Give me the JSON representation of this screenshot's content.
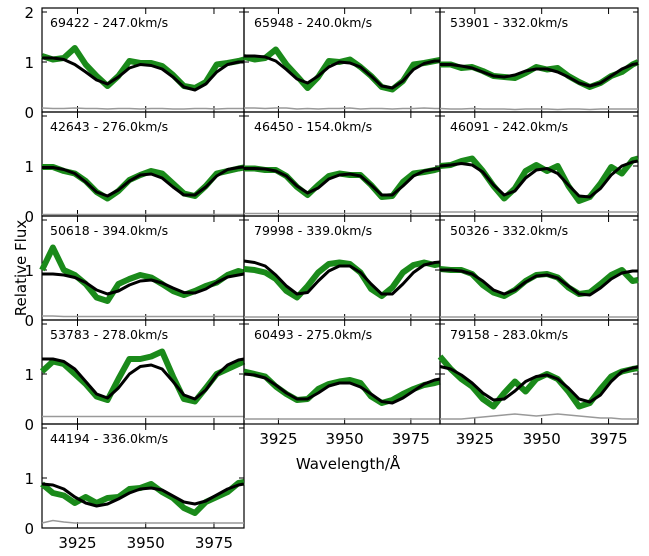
{
  "figure": {
    "ylabel": "Relative Flux",
    "xlabel": "Wavelength/Å"
  },
  "chart_data": {
    "type": "line",
    "xlabel": "Wavelength/Å",
    "ylabel": "Relative Flux",
    "xlim": [
      3912,
      3986
    ],
    "ylim": [
      0,
      2
    ],
    "x_ticks": [
      3925,
      3950,
      3975
    ],
    "y_ticks": [
      0,
      1,
      2
    ],
    "colors": {
      "observed": "#1a8a1a",
      "model": "#000000",
      "noise": "#999999"
    },
    "panels": [
      {
        "title": "69422 - 247.0km/s",
        "x": [
          3912,
          3916,
          3920,
          3924,
          3928,
          3932,
          3936,
          3940,
          3944,
          3948,
          3952,
          3956,
          3960,
          3964,
          3968,
          3972,
          3976,
          3980,
          3984,
          3986
        ],
        "observed": [
          1.12,
          1.05,
          1.08,
          1.28,
          0.95,
          0.72,
          0.52,
          0.72,
          1.02,
          0.98,
          0.98,
          0.92,
          0.74,
          0.52,
          0.48,
          0.6,
          0.95,
          0.98,
          1.02,
          1.05
        ],
        "model": [
          1.08,
          1.08,
          1.05,
          0.95,
          0.8,
          0.64,
          0.56,
          0.7,
          0.88,
          0.95,
          0.93,
          0.86,
          0.7,
          0.5,
          0.44,
          0.56,
          0.8,
          0.95,
          1.0,
          1.0
        ],
        "noise": [
          0.08,
          0.07,
          0.07,
          0.08,
          0.07,
          0.07,
          0.06,
          0.07,
          0.07,
          0.06,
          0.07,
          0.07,
          0.06,
          0.06,
          0.07,
          0.07,
          0.06,
          0.07,
          0.07,
          0.07
        ]
      },
      {
        "title": "65948 - 240.0km/s",
        "x": [
          3912,
          3916,
          3920,
          3924,
          3928,
          3932,
          3936,
          3940,
          3944,
          3948,
          3952,
          3956,
          3960,
          3964,
          3968,
          3972,
          3976,
          3980,
          3984,
          3986
        ],
        "observed": [
          1.1,
          1.05,
          1.08,
          1.25,
          0.95,
          0.72,
          0.48,
          0.7,
          1.02,
          1.0,
          1.05,
          0.9,
          0.72,
          0.5,
          0.45,
          0.62,
          0.95,
          0.98,
          1.02,
          1.04
        ],
        "model": [
          1.12,
          1.12,
          1.1,
          1.02,
          0.85,
          0.66,
          0.58,
          0.72,
          0.9,
          1.0,
          0.98,
          0.9,
          0.72,
          0.52,
          0.48,
          0.62,
          0.85,
          0.97,
          1.02,
          1.02
        ],
        "noise": [
          0.08,
          0.08,
          0.07,
          0.08,
          0.08,
          0.06,
          0.07,
          0.06,
          0.07,
          0.07,
          0.08,
          0.06,
          0.07,
          0.07,
          0.06,
          0.07,
          0.07,
          0.08,
          0.07,
          0.07
        ]
      },
      {
        "title": "53901 - 332.0km/s",
        "x": [
          3912,
          3916,
          3920,
          3924,
          3928,
          3932,
          3936,
          3940,
          3944,
          3948,
          3952,
          3956,
          3960,
          3964,
          3968,
          3972,
          3976,
          3980,
          3984,
          3986
        ],
        "observed": [
          0.95,
          0.95,
          0.88,
          0.9,
          0.82,
          0.72,
          0.7,
          0.68,
          0.78,
          0.9,
          0.85,
          0.88,
          0.72,
          0.6,
          0.5,
          0.58,
          0.72,
          0.8,
          0.95,
          1.0
        ],
        "model": [
          0.95,
          0.95,
          0.92,
          0.88,
          0.8,
          0.72,
          0.7,
          0.74,
          0.82,
          0.86,
          0.86,
          0.8,
          0.7,
          0.58,
          0.52,
          0.58,
          0.72,
          0.86,
          0.95,
          0.97
        ],
        "noise": [
          0.07,
          0.06,
          0.06,
          0.07,
          0.06,
          0.06,
          0.06,
          0.05,
          0.06,
          0.06,
          0.06,
          0.05,
          0.06,
          0.06,
          0.05,
          0.06,
          0.06,
          0.06,
          0.06,
          0.06
        ]
      },
      {
        "title": "42643 - 276.0km/s",
        "x": [
          3912,
          3916,
          3920,
          3924,
          3928,
          3932,
          3936,
          3940,
          3944,
          3948,
          3952,
          3956,
          3960,
          3964,
          3968,
          3972,
          3976,
          3980,
          3984,
          3986
        ],
        "observed": [
          0.98,
          0.98,
          0.9,
          0.85,
          0.7,
          0.48,
          0.35,
          0.5,
          0.72,
          0.82,
          0.9,
          0.85,
          0.65,
          0.45,
          0.4,
          0.6,
          0.85,
          0.9,
          0.95,
          0.97
        ],
        "model": [
          0.97,
          0.97,
          0.93,
          0.85,
          0.68,
          0.48,
          0.4,
          0.52,
          0.7,
          0.82,
          0.84,
          0.76,
          0.58,
          0.42,
          0.42,
          0.58,
          0.8,
          0.93,
          0.97,
          0.98
        ],
        "noise": [
          0.03,
          0.03,
          0.03,
          0.03,
          0.03,
          0.03,
          0.03,
          0.03,
          0.03,
          0.03,
          0.03,
          0.03,
          0.03,
          0.03,
          0.03,
          0.03,
          0.03,
          0.03,
          0.03,
          0.03
        ]
      },
      {
        "title": "46450 - 154.0km/s",
        "x": [
          3912,
          3916,
          3920,
          3924,
          3928,
          3932,
          3936,
          3940,
          3944,
          3948,
          3952,
          3956,
          3960,
          3964,
          3968,
          3972,
          3976,
          3980,
          3984,
          3986
        ],
        "observed": [
          0.95,
          0.95,
          0.92,
          0.92,
          0.8,
          0.58,
          0.42,
          0.62,
          0.8,
          0.85,
          0.82,
          0.82,
          0.62,
          0.38,
          0.4,
          0.68,
          0.85,
          0.88,
          0.92,
          0.95
        ],
        "model": [
          0.95,
          0.95,
          0.94,
          0.9,
          0.8,
          0.6,
          0.46,
          0.56,
          0.74,
          0.82,
          0.84,
          0.8,
          0.62,
          0.42,
          0.42,
          0.6,
          0.8,
          0.9,
          0.94,
          0.95
        ],
        "noise": [
          0.05,
          0.05,
          0.05,
          0.05,
          0.05,
          0.05,
          0.05,
          0.05,
          0.05,
          0.05,
          0.05,
          0.05,
          0.05,
          0.05,
          0.05,
          0.05,
          0.05,
          0.05,
          0.05,
          0.05
        ]
      },
      {
        "title": "46091 - 242.0km/s",
        "x": [
          3912,
          3916,
          3920,
          3924,
          3928,
          3932,
          3936,
          3940,
          3944,
          3948,
          3952,
          3956,
          3960,
          3964,
          3968,
          3972,
          3976,
          3980,
          3984,
          3986
        ],
        "observed": [
          1.0,
          1.02,
          1.1,
          1.15,
          0.9,
          0.6,
          0.35,
          0.55,
          0.9,
          1.02,
          0.9,
          1.0,
          0.6,
          0.3,
          0.38,
          0.65,
          0.98,
          0.85,
          1.12,
          1.15
        ],
        "model": [
          1.0,
          1.02,
          1.05,
          1.02,
          0.88,
          0.62,
          0.42,
          0.5,
          0.76,
          0.92,
          0.95,
          0.85,
          0.62,
          0.4,
          0.38,
          0.55,
          0.82,
          1.0,
          1.08,
          1.1
        ],
        "noise": [
          0.08,
          0.08,
          0.08,
          0.08,
          0.08,
          0.08,
          0.08,
          0.08,
          0.08,
          0.08,
          0.08,
          0.08,
          0.08,
          0.08,
          0.08,
          0.08,
          0.08,
          0.08,
          0.08,
          0.08
        ]
      },
      {
        "title": "50618 - 394.0km/s",
        "x": [
          3912,
          3916,
          3920,
          3924,
          3928,
          3932,
          3936,
          3940,
          3944,
          3948,
          3952,
          3956,
          3960,
          3964,
          3968,
          3972,
          3976,
          3980,
          3984,
          3986
        ],
        "observed": [
          1.0,
          1.45,
          1.0,
          0.9,
          0.72,
          0.45,
          0.38,
          0.72,
          0.82,
          0.9,
          0.85,
          0.72,
          0.58,
          0.5,
          0.58,
          0.68,
          0.75,
          0.9,
          0.98,
          0.95
        ],
        "model": [
          0.92,
          0.92,
          0.9,
          0.85,
          0.75,
          0.6,
          0.52,
          0.58,
          0.7,
          0.78,
          0.8,
          0.74,
          0.64,
          0.55,
          0.54,
          0.62,
          0.75,
          0.86,
          0.9,
          0.92
        ],
        "noise": [
          0.08,
          0.08,
          0.07,
          0.07,
          0.07,
          0.07,
          0.07,
          0.07,
          0.07,
          0.07,
          0.07,
          0.07,
          0.07,
          0.07,
          0.07,
          0.07,
          0.07,
          0.07,
          0.07,
          0.07
        ]
      },
      {
        "title": "79998 - 339.0km/s",
        "x": [
          3912,
          3916,
          3920,
          3924,
          3928,
          3932,
          3936,
          3940,
          3944,
          3948,
          3952,
          3956,
          3960,
          3964,
          3968,
          3972,
          3976,
          3980,
          3984,
          3986
        ],
        "observed": [
          1.02,
          1.0,
          0.95,
          0.82,
          0.58,
          0.45,
          0.68,
          0.95,
          1.12,
          1.15,
          1.12,
          0.95,
          0.62,
          0.48,
          0.65,
          0.95,
          1.1,
          1.15,
          1.1,
          1.12
        ],
        "model": [
          1.18,
          1.15,
          1.08,
          0.9,
          0.68,
          0.52,
          0.55,
          0.78,
          0.98,
          1.08,
          1.08,
          0.95,
          0.72,
          0.52,
          0.52,
          0.72,
          0.95,
          1.1,
          1.15,
          1.16
        ],
        "noise": [
          0.06,
          0.06,
          0.06,
          0.06,
          0.06,
          0.06,
          0.06,
          0.06,
          0.06,
          0.06,
          0.06,
          0.06,
          0.06,
          0.06,
          0.06,
          0.06,
          0.06,
          0.06,
          0.06,
          0.06
        ]
      },
      {
        "title": "50326 - 332.0km/s",
        "x": [
          3912,
          3916,
          3920,
          3924,
          3928,
          3932,
          3936,
          3940,
          3944,
          3948,
          3952,
          3956,
          3960,
          3964,
          3968,
          3972,
          3976,
          3980,
          3984,
          3986
        ],
        "observed": [
          1.02,
          1.0,
          1.0,
          0.92,
          0.7,
          0.55,
          0.48,
          0.6,
          0.78,
          0.9,
          0.92,
          0.85,
          0.65,
          0.52,
          0.55,
          0.72,
          0.9,
          1.0,
          0.78,
          0.8
        ],
        "model": [
          1.0,
          1.0,
          0.98,
          0.92,
          0.78,
          0.6,
          0.52,
          0.6,
          0.76,
          0.88,
          0.9,
          0.84,
          0.68,
          0.52,
          0.5,
          0.64,
          0.82,
          0.94,
          0.98,
          0.98
        ],
        "noise": [
          0.06,
          0.06,
          0.06,
          0.06,
          0.06,
          0.06,
          0.06,
          0.06,
          0.06,
          0.06,
          0.06,
          0.06,
          0.06,
          0.06,
          0.06,
          0.06,
          0.06,
          0.06,
          0.06,
          0.06
        ]
      },
      {
        "title": "53783 - 278.0km/s",
        "x": [
          3912,
          3916,
          3920,
          3924,
          3928,
          3932,
          3936,
          3940,
          3944,
          3948,
          3952,
          3956,
          3960,
          3964,
          3968,
          3972,
          3976,
          3980,
          3984,
          3986
        ],
        "observed": [
          1.05,
          1.25,
          1.2,
          1.0,
          0.8,
          0.55,
          0.48,
          0.9,
          1.3,
          1.3,
          1.35,
          1.45,
          0.95,
          0.5,
          0.45,
          0.72,
          1.0,
          1.1,
          1.2,
          1.25
        ],
        "model": [
          1.3,
          1.3,
          1.25,
          1.1,
          0.85,
          0.6,
          0.52,
          0.72,
          1.0,
          1.15,
          1.18,
          1.1,
          0.85,
          0.58,
          0.5,
          0.68,
          0.98,
          1.18,
          1.28,
          1.3
        ],
        "noise": [
          0.15,
          0.15,
          0.15,
          0.15,
          0.15,
          0.15,
          0.15,
          0.15,
          0.15,
          0.15,
          0.15,
          0.15,
          0.15,
          0.15,
          0.15,
          0.15,
          0.15,
          0.15,
          0.15,
          0.15
        ]
      },
      {
        "title": "60493 - 275.0km/s",
        "x": [
          3912,
          3916,
          3920,
          3924,
          3928,
          3932,
          3936,
          3940,
          3944,
          3948,
          3952,
          3956,
          3960,
          3964,
          3968,
          3972,
          3976,
          3980,
          3984,
          3986
        ],
        "observed": [
          1.05,
          1.0,
          0.95,
          0.75,
          0.6,
          0.48,
          0.5,
          0.7,
          0.8,
          0.85,
          0.88,
          0.82,
          0.55,
          0.42,
          0.48,
          0.6,
          0.7,
          0.78,
          0.82,
          0.85
        ],
        "model": [
          1.0,
          0.98,
          0.92,
          0.78,
          0.62,
          0.5,
          0.5,
          0.62,
          0.76,
          0.82,
          0.82,
          0.74,
          0.6,
          0.45,
          0.42,
          0.52,
          0.66,
          0.8,
          0.88,
          0.9
        ],
        "noise": [
          0.1,
          0.1,
          0.1,
          0.1,
          0.1,
          0.1,
          0.1,
          0.1,
          0.1,
          0.1,
          0.1,
          0.1,
          0.1,
          0.1,
          0.1,
          0.1,
          0.1,
          0.1,
          0.1,
          0.1
        ]
      },
      {
        "title": "79158 - 283.0km/s",
        "x": [
          3912,
          3916,
          3920,
          3924,
          3928,
          3932,
          3936,
          3940,
          3944,
          3948,
          3952,
          3956,
          3960,
          3964,
          3968,
          3972,
          3976,
          3980,
          3984,
          3986
        ],
        "observed": [
          1.35,
          1.1,
          0.9,
          0.75,
          0.5,
          0.35,
          0.62,
          0.85,
          0.65,
          0.9,
          1.0,
          0.9,
          0.65,
          0.35,
          0.42,
          0.7,
          0.95,
          1.05,
          1.1,
          1.12
        ],
        "model": [
          1.15,
          1.1,
          0.98,
          0.82,
          0.62,
          0.48,
          0.5,
          0.66,
          0.85,
          0.95,
          0.98,
          0.9,
          0.72,
          0.5,
          0.44,
          0.58,
          0.85,
          1.05,
          1.12,
          1.14
        ],
        "noise": [
          0.1,
          0.1,
          0.1,
          0.12,
          0.14,
          0.16,
          0.18,
          0.2,
          0.18,
          0.16,
          0.18,
          0.2,
          0.18,
          0.16,
          0.14,
          0.12,
          0.12,
          0.1,
          0.1,
          0.1
        ]
      },
      {
        "title": "44194 - 336.0km/s",
        "x": [
          3912,
          3916,
          3920,
          3924,
          3928,
          3932,
          3936,
          3940,
          3944,
          3948,
          3952,
          3956,
          3960,
          3964,
          3968,
          3972,
          3976,
          3980,
          3984,
          3986
        ],
        "observed": [
          0.88,
          0.7,
          0.65,
          0.5,
          0.62,
          0.5,
          0.6,
          0.62,
          0.78,
          0.8,
          0.88,
          0.72,
          0.6,
          0.4,
          0.3,
          0.52,
          0.62,
          0.72,
          0.9,
          0.92
        ],
        "model": [
          0.88,
          0.86,
          0.78,
          0.62,
          0.5,
          0.44,
          0.48,
          0.58,
          0.7,
          0.78,
          0.8,
          0.76,
          0.64,
          0.52,
          0.48,
          0.54,
          0.66,
          0.78,
          0.86,
          0.88
        ],
        "noise": [
          0.1,
          0.15,
          0.12,
          0.1,
          0.1,
          0.1,
          0.1,
          0.1,
          0.1,
          0.1,
          0.1,
          0.1,
          0.1,
          0.1,
          0.1,
          0.1,
          0.1,
          0.1,
          0.1,
          0.1
        ]
      }
    ]
  }
}
